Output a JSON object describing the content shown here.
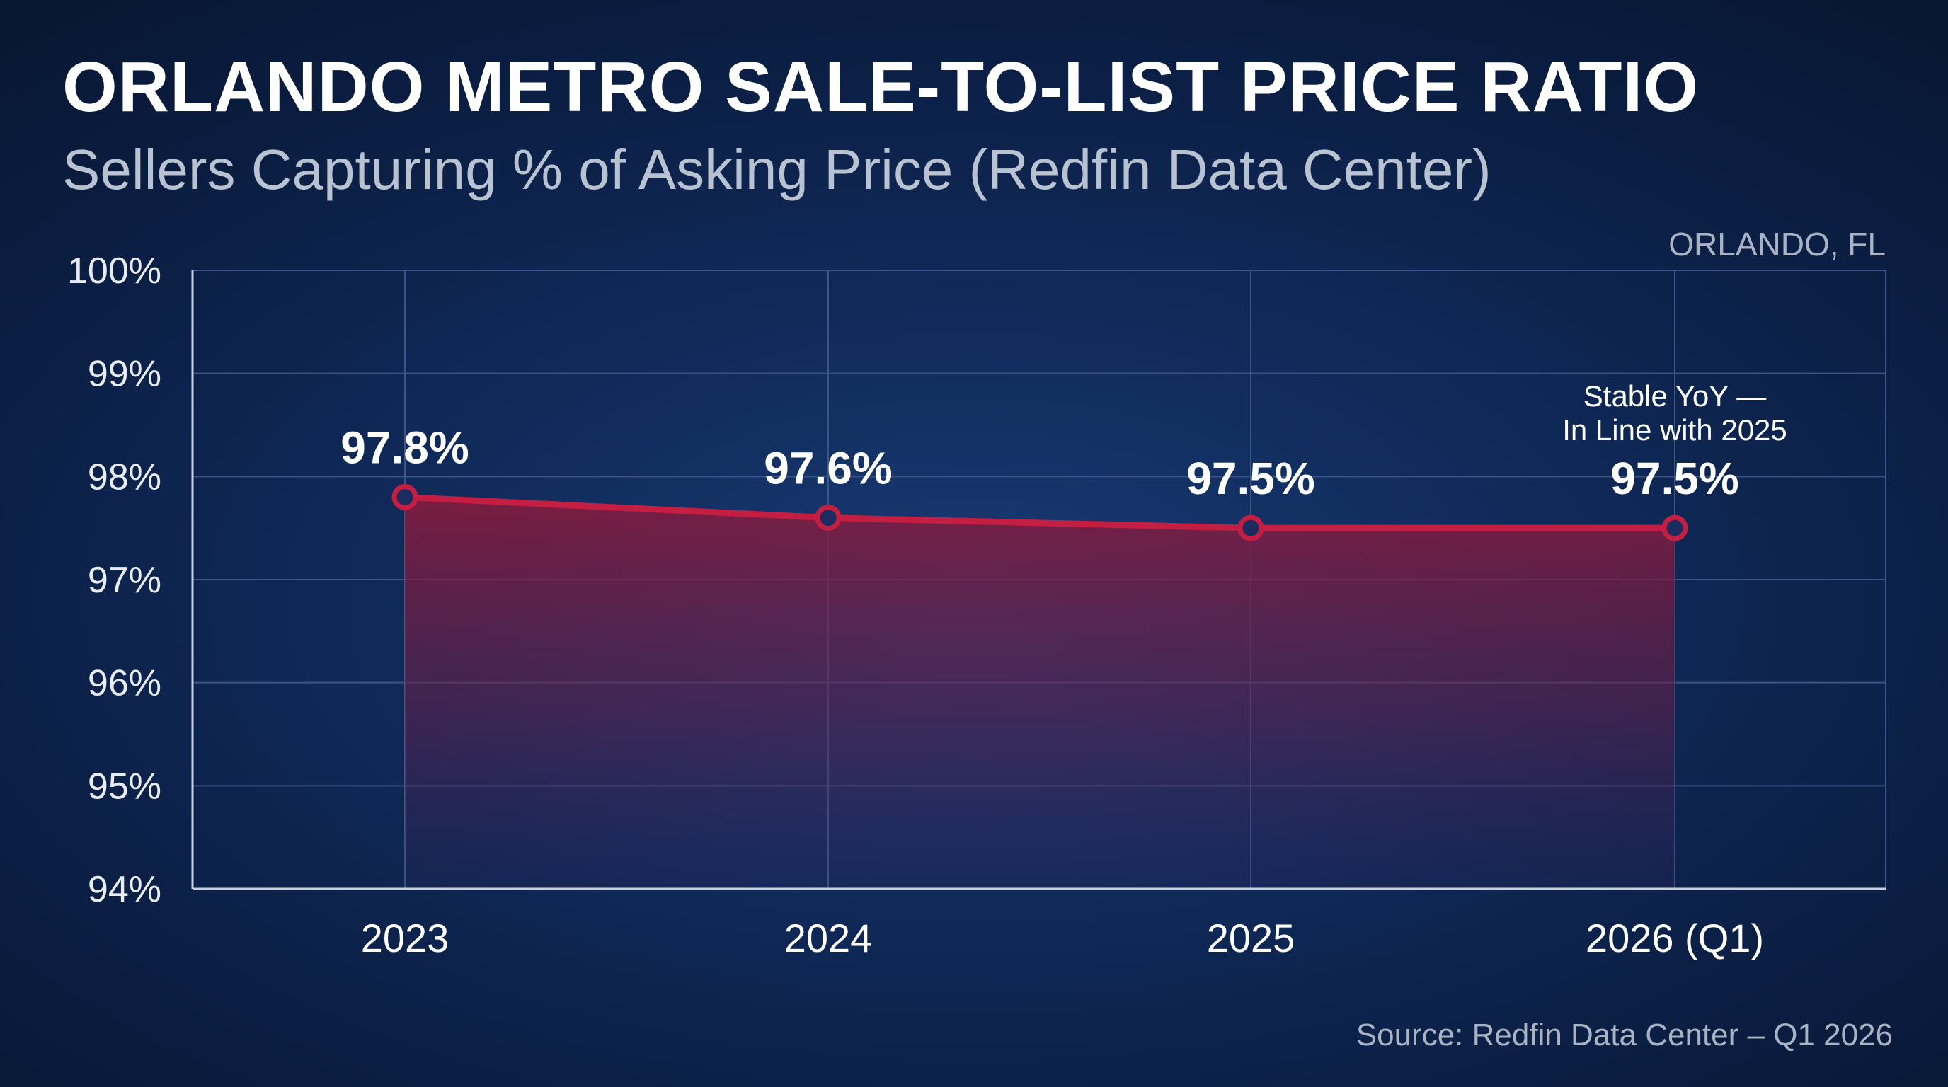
{
  "title": "ORLANDO METRO SALE-TO-LIST PRICE RATIO",
  "subtitle": "Sellers Capturing % of Asking Price (Redfin Data Center)",
  "location": "ORLANDO, FL",
  "source": "Source: Redfin Data Center – Q1 2026",
  "colors": {
    "line": "#c41e43",
    "fill": "#8c1a3c",
    "grid": "#3d5486"
  },
  "chart_data": {
    "type": "area",
    "categories": [
      "2023",
      "2024",
      "2025",
      "2026 (Q1)"
    ],
    "values": [
      97.8,
      97.6,
      97.5,
      97.5
    ],
    "data_labels": [
      "97.8%",
      "97.6%",
      "97.5%",
      "97.5%"
    ],
    "ylim": [
      94,
      100
    ],
    "yticks": [
      94,
      95,
      96,
      97,
      98,
      99,
      100
    ],
    "ytick_labels": [
      "94%",
      "95%",
      "96%",
      "97%",
      "98%",
      "99%",
      "100%"
    ],
    "grid": true,
    "annotation": {
      "lines": [
        "Stable YoY —",
        "In Line with 2025"
      ],
      "category": "2026 (Q1)"
    }
  }
}
